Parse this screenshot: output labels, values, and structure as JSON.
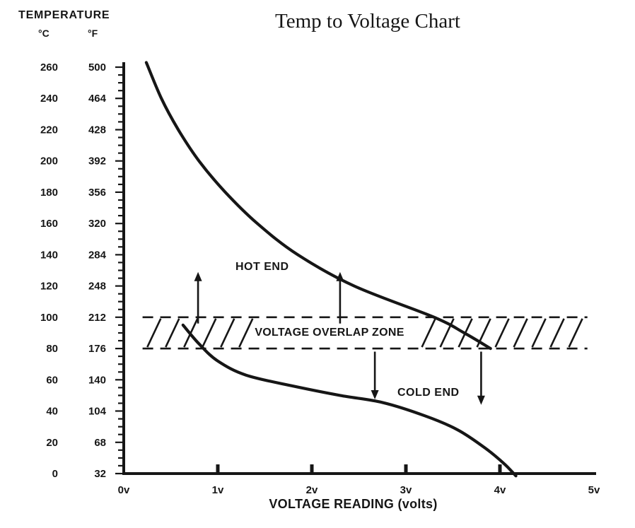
{
  "title": "Temp to Voltage Chart",
  "y_axis": {
    "header": "TEMPERATURE",
    "unit_c": "°C",
    "unit_f": "°F"
  },
  "x_axis": {
    "label": "VOLTAGE READING (volts)"
  },
  "annotations": {
    "hot_end": "HOT END",
    "cold_end": "COLD END",
    "overlap_zone": "VOLTAGE OVERLAP ZONE"
  },
  "chart_data": {
    "type": "line",
    "title": "Temp to Voltage Chart",
    "xlabel": "VOLTAGE READING (volts)",
    "ylabel": "TEMPERATURE (°C / °F)",
    "xlim": [
      0,
      5
    ],
    "ylim_c": [
      0,
      260
    ],
    "grid": false,
    "legend": "none",
    "temp_scale": [
      {
        "c": 260,
        "f": 500
      },
      {
        "c": 240,
        "f": 464
      },
      {
        "c": 220,
        "f": 428
      },
      {
        "c": 200,
        "f": 392
      },
      {
        "c": 180,
        "f": 356
      },
      {
        "c": 160,
        "f": 320
      },
      {
        "c": 140,
        "f": 284
      },
      {
        "c": 120,
        "f": 248
      },
      {
        "c": 100,
        "f": 212
      },
      {
        "c": 80,
        "f": 176
      },
      {
        "c": 60,
        "f": 140
      },
      {
        "c": 40,
        "f": 104
      },
      {
        "c": 20,
        "f": 68
      },
      {
        "c": 0,
        "f": 32
      }
    ],
    "voltage_ticks": [
      {
        "v": 0,
        "label": "0v"
      },
      {
        "v": 1,
        "label": "1v"
      },
      {
        "v": 2,
        "label": "2v"
      },
      {
        "v": 3,
        "label": "3v"
      },
      {
        "v": 4,
        "label": "4v"
      },
      {
        "v": 5,
        "label": "5v"
      }
    ],
    "overlap_zone": {
      "label": "VOLTAGE OVERLAP ZONE",
      "from_c": 80,
      "to_c": 100,
      "from_f": 176,
      "to_f": 212,
      "v_range": [
        0.2,
        4.93
      ],
      "hatch_segments_v": [
        [
          0.25,
          1.25
        ],
        [
          3.17,
          4.9
        ]
      ]
    },
    "series": [
      {
        "name": "HOT END",
        "points_v_c": [
          [
            0.24,
            263
          ],
          [
            0.4,
            240
          ],
          [
            0.58,
            220
          ],
          [
            0.8,
            200
          ],
          [
            1.08,
            180
          ],
          [
            1.42,
            160
          ],
          [
            1.85,
            140
          ],
          [
            2.45,
            120
          ],
          [
            3.3,
            100
          ],
          [
            3.62,
            90
          ],
          [
            3.9,
            80
          ]
        ]
      },
      {
        "name": "COLD END",
        "points_v_c": [
          [
            0.63,
            95
          ],
          [
            0.8,
            83
          ],
          [
            1.0,
            72
          ],
          [
            1.3,
            63
          ],
          [
            1.8,
            56
          ],
          [
            2.3,
            50
          ],
          [
            2.75,
            45.5
          ],
          [
            3.2,
            37
          ],
          [
            3.55,
            28
          ],
          [
            3.85,
            16
          ],
          [
            4.05,
            6
          ],
          [
            4.17,
            -1.5
          ]
        ]
      }
    ],
    "arrows": [
      {
        "dir": "up",
        "v": 0.79,
        "from_c": 96,
        "to_c": 129
      },
      {
        "dir": "up",
        "v": 2.3,
        "from_c": 96,
        "to_c": 129
      },
      {
        "dir": "down",
        "v": 2.67,
        "from_c": 78,
        "to_c": 47.5
      },
      {
        "dir": "down",
        "v": 3.8,
        "from_c": 78,
        "to_c": 44
      }
    ]
  }
}
